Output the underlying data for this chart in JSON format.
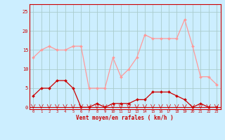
{
  "hours": [
    0,
    1,
    2,
    3,
    4,
    5,
    6,
    7,
    8,
    9,
    10,
    11,
    12,
    13,
    14,
    15,
    16,
    17,
    18,
    19,
    20,
    21,
    22,
    23
  ],
  "rafales": [
    13,
    15,
    16,
    15,
    15,
    16,
    16,
    5,
    5,
    5,
    13,
    8,
    10,
    13,
    19,
    18,
    18,
    18,
    18,
    23,
    16,
    8,
    8,
    6
  ],
  "moyen": [
    3,
    5,
    5,
    7,
    7,
    5,
    0,
    0,
    1,
    0,
    1,
    1,
    1,
    2,
    2,
    4,
    4,
    4,
    3,
    2,
    0,
    1,
    0,
    0
  ],
  "bg_color": "#cceeff",
  "grid_color": "#aacccc",
  "rafales_color": "#ff9999",
  "moyen_color": "#cc0000",
  "xlabel": "Vent moyen/en rafales ( km/h )",
  "ylabel_ticks": [
    0,
    5,
    10,
    15,
    20,
    25
  ],
  "ylim": [
    -0.5,
    27
  ],
  "xlim": [
    -0.5,
    23.5
  ]
}
